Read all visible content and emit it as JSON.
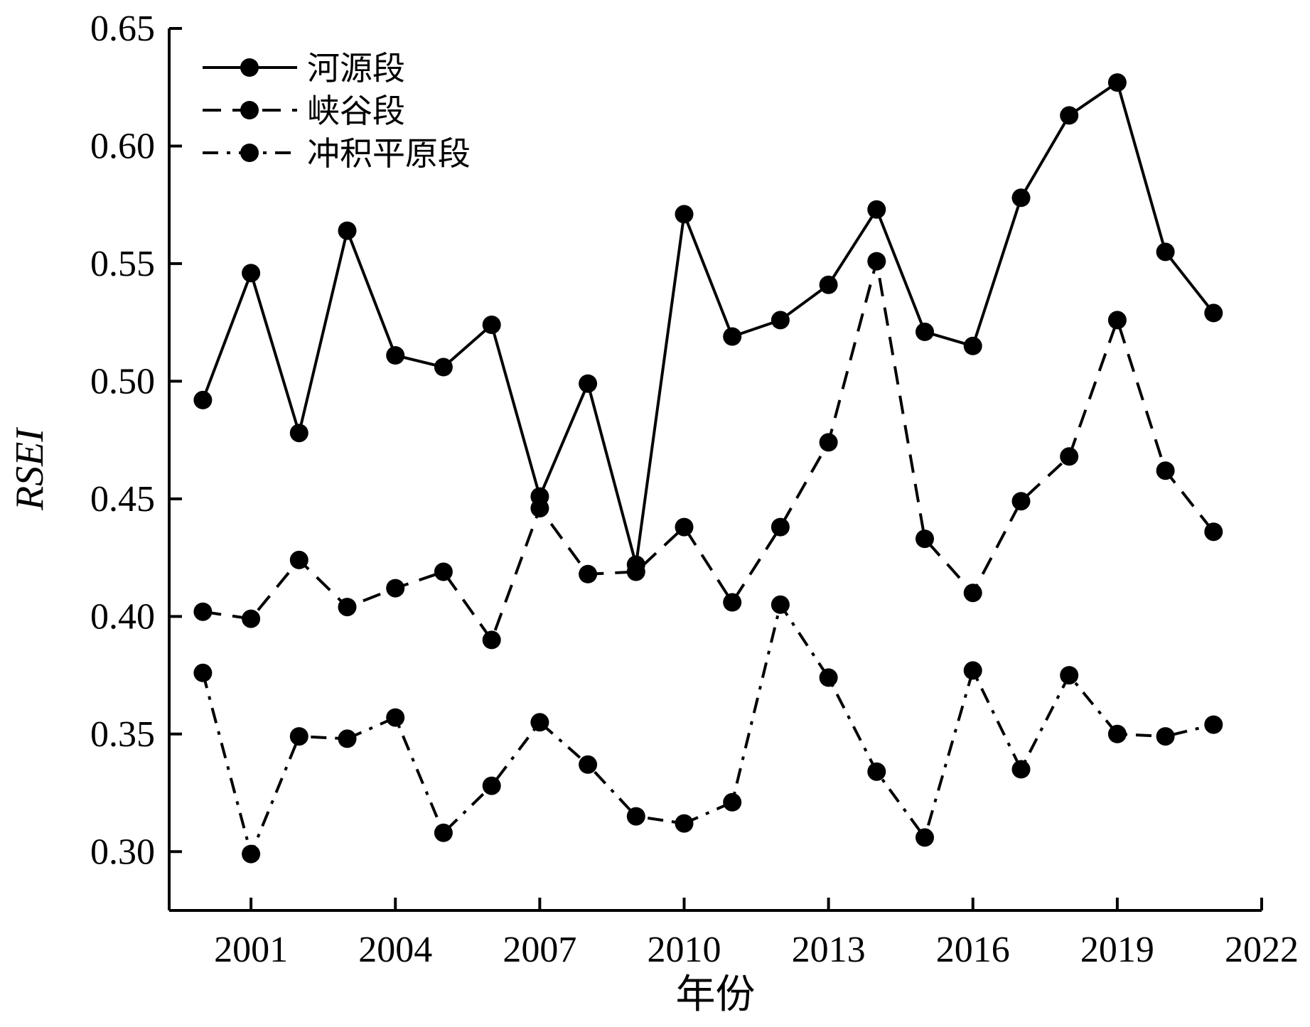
{
  "chart_data": {
    "type": "line",
    "xlabel": "年份",
    "ylabel": "RSEI",
    "xlim": [
      1999.3,
      2022
    ],
    "ylim": [
      0.275,
      0.65
    ],
    "xticks": [
      2001,
      2004,
      2007,
      2010,
      2013,
      2016,
      2019,
      2022
    ],
    "xtick_labels": [
      "2001",
      "2004",
      "2007",
      "2010",
      "2013",
      "2016",
      "2019",
      "2022"
    ],
    "yticks": [
      0.3,
      0.35,
      0.4,
      0.45,
      0.5,
      0.55,
      0.6,
      0.65
    ],
    "ytick_labels": [
      "0.30",
      "0.35",
      "0.40",
      "0.45",
      "0.50",
      "0.55",
      "0.60",
      "0.65"
    ],
    "grid": false,
    "legend_position": "top-left",
    "x": [
      2000,
      2001,
      2002,
      2003,
      2004,
      2005,
      2006,
      2007,
      2008,
      2009,
      2010,
      2011,
      2012,
      2013,
      2014,
      2015,
      2016,
      2017,
      2018,
      2019,
      2020,
      2021
    ],
    "series": [
      {
        "name": "河源段",
        "line_style": "solid",
        "color": "#000000",
        "values": [
          0.492,
          0.546,
          0.478,
          0.564,
          0.511,
          0.506,
          0.524,
          0.451,
          0.499,
          0.422,
          0.571,
          0.519,
          0.526,
          0.541,
          0.573,
          0.521,
          0.515,
          0.578,
          0.613,
          0.627,
          0.555,
          0.529
        ]
      },
      {
        "name": "峡谷段",
        "line_style": "dashed",
        "color": "#000000",
        "values": [
          0.402,
          0.399,
          0.424,
          0.404,
          0.412,
          0.419,
          0.39,
          0.446,
          0.418,
          0.419,
          0.438,
          0.406,
          0.438,
          0.474,
          0.551,
          0.433,
          0.41,
          0.449,
          0.468,
          0.526,
          0.462,
          0.436
        ]
      },
      {
        "name": "冲积平原段",
        "line_style": "dashdot",
        "color": "#000000",
        "values": [
          0.376,
          0.299,
          0.349,
          0.348,
          0.357,
          0.308,
          0.328,
          0.355,
          0.337,
          0.315,
          0.312,
          0.321,
          0.405,
          0.374,
          0.334,
          0.306,
          0.377,
          0.335,
          0.375,
          0.35,
          0.349,
          0.354
        ]
      }
    ]
  }
}
